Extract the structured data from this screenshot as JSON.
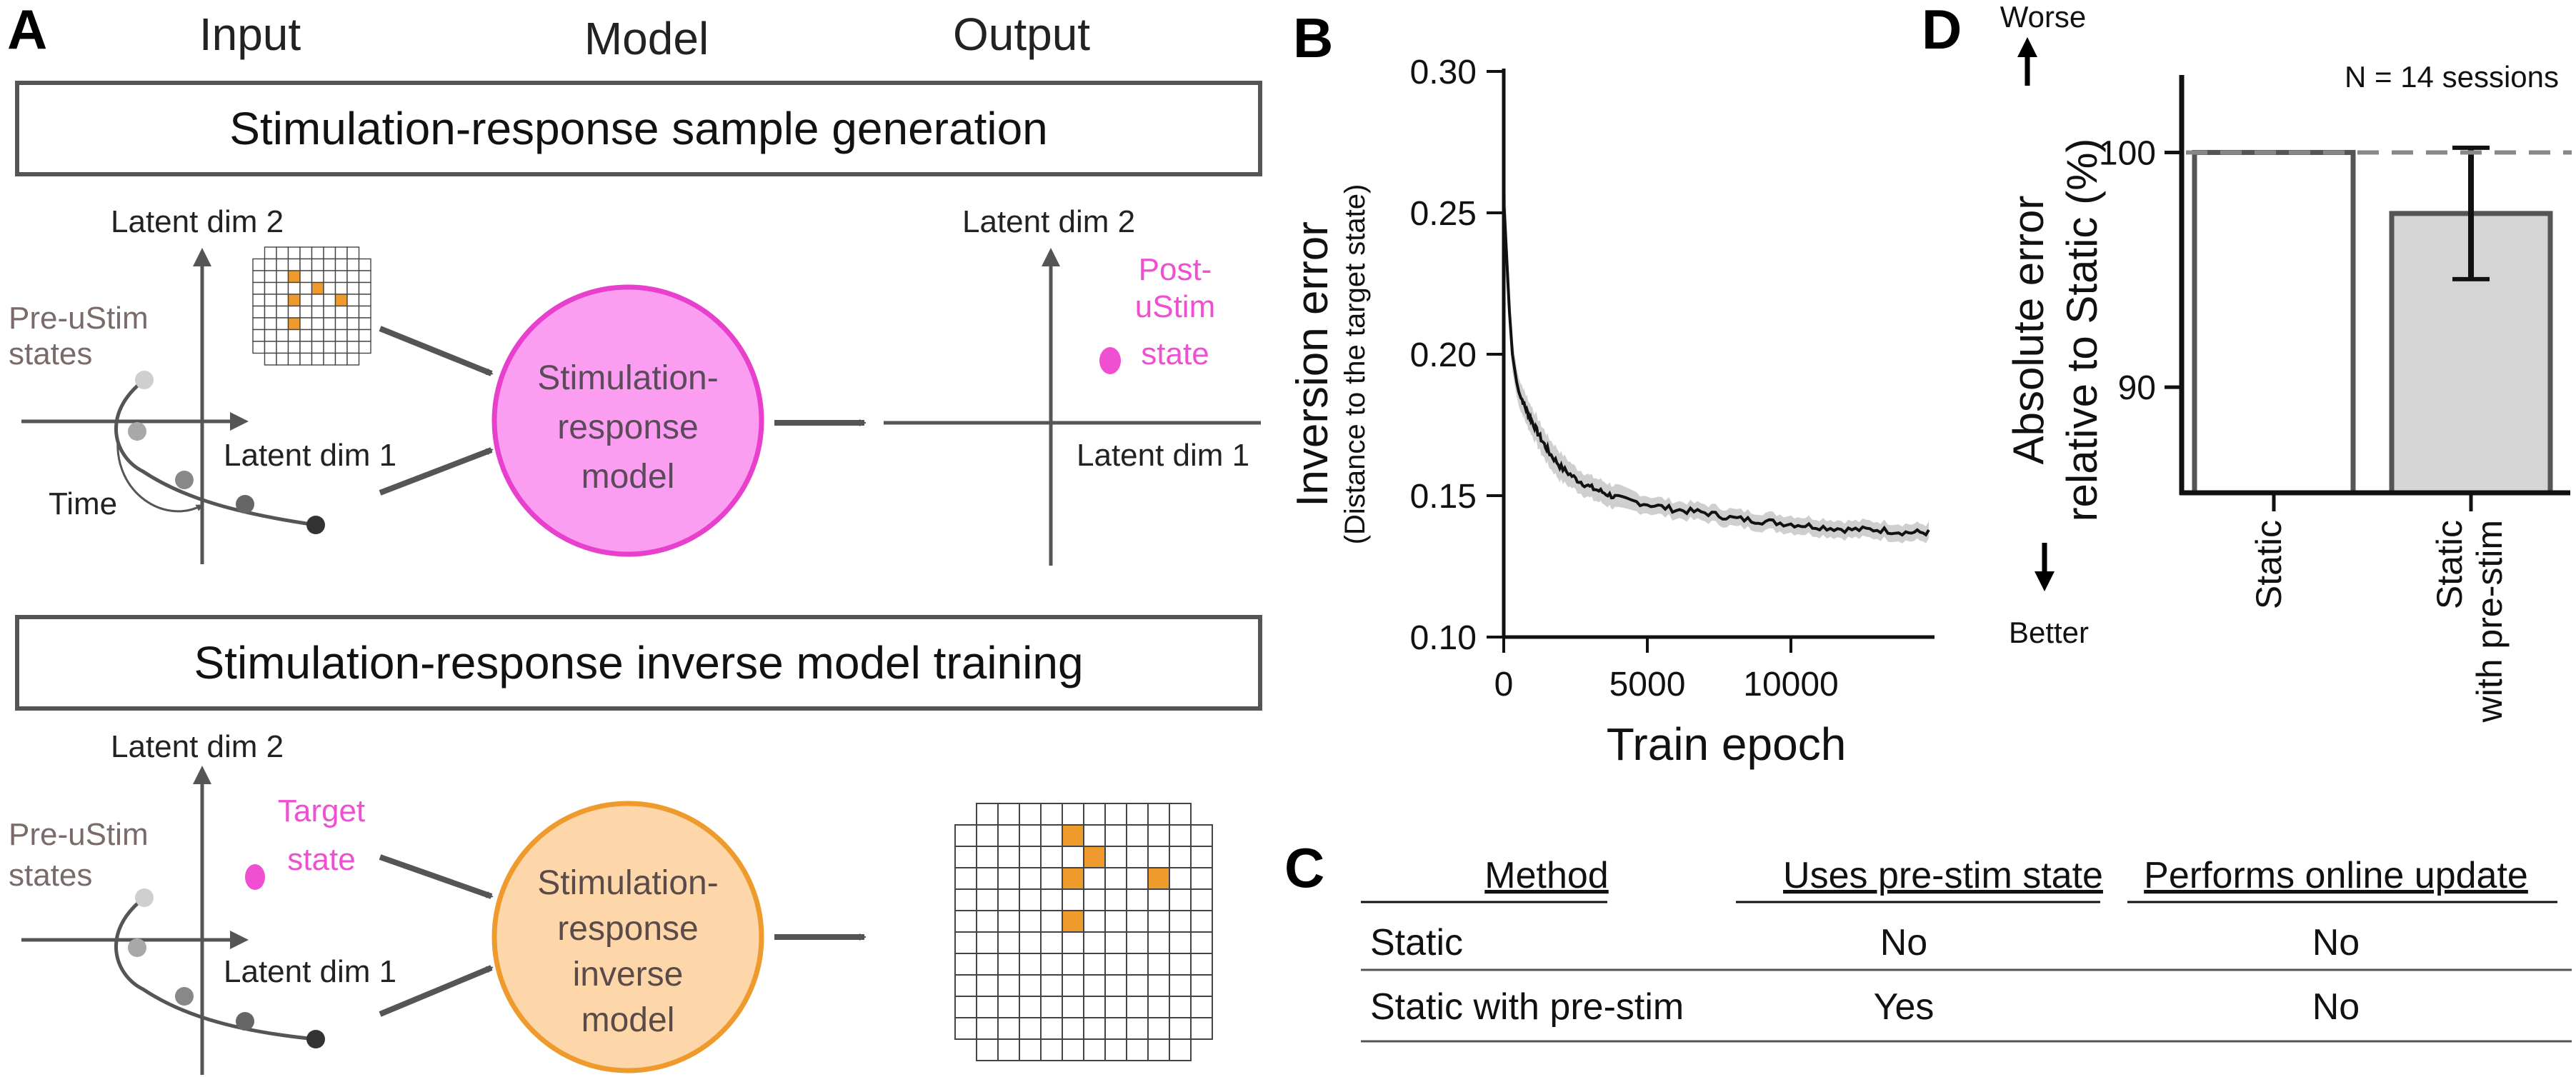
{
  "panels": {
    "A": {
      "letter": "A",
      "col_input": "Input",
      "col_model": "Model",
      "col_output": "Output",
      "section1_title": "Stimulation-response sample generation",
      "section2_title": "Stimulation-response inverse model training",
      "latent_dim_1": "Latent dim 1",
      "latent_dim_2": "Latent dim 2",
      "pre_ustim_line1": "Pre-uStim",
      "pre_ustim_line2": "states",
      "time_label": "Time",
      "post_ustim_line1": "Post-",
      "post_ustim_line2": "uStim",
      "post_ustim_line3": "state",
      "target_line1": "Target",
      "target_line2": "state",
      "model1_line1": "Stimulation-",
      "model1_line2": "response",
      "model1_line3": "model",
      "model2_line1": "Stimulation-",
      "model2_line2": "response",
      "model2_line3": "inverse",
      "model2_line4": "model"
    },
    "B": {
      "letter": "B"
    },
    "C": {
      "letter": "C",
      "headers": [
        "Method",
        "Uses pre-stim state",
        "Performs online update"
      ],
      "rows": [
        [
          "Static",
          "No",
          "No"
        ],
        [
          "Static with pre-stim",
          "Yes",
          "No"
        ]
      ]
    },
    "D": {
      "letter": "D"
    }
  },
  "colors": {
    "magenta": "#f04fd2",
    "model1_fill": "#fb9df0",
    "model1_stroke": "#e83fcc",
    "model2_fill": "#fdd6a9",
    "model2_stroke": "#ef9a2c",
    "grid_orange": "#ef9a2c",
    "arrow": "#555555",
    "bar_static": "#ffffff",
    "bar_prestim": "#d5d5d5"
  },
  "chart_data": [
    {
      "panel": "B",
      "type": "line",
      "xlabel": "Train epoch",
      "ylabel": "Inversion error",
      "ylabel_sub": "(Distance to the target state)",
      "xlim": [
        0,
        15000
      ],
      "ylim": [
        0.1,
        0.3
      ],
      "xticks": [
        0,
        5000,
        10000
      ],
      "xtick_labels": [
        "0",
        "5000",
        "10000"
      ],
      "yticks": [
        0.1,
        0.15,
        0.2,
        0.25,
        0.3
      ],
      "ytick_labels": [
        "0.10",
        "0.15",
        "0.20",
        "0.25",
        "0.30"
      ],
      "series": [
        {
          "name": "mean",
          "x": [
            0,
            100,
            200,
            300,
            450,
            600,
            800,
            1000,
            1300,
            1600,
            2000,
            2500,
            3000,
            3500,
            4000,
            5000,
            6000,
            7000,
            8000,
            9000,
            10000,
            11000,
            12000,
            13000,
            14000,
            14800
          ],
          "y": [
            0.255,
            0.235,
            0.215,
            0.2,
            0.19,
            0.185,
            0.18,
            0.176,
            0.17,
            0.165,
            0.16,
            0.156,
            0.153,
            0.151,
            0.149,
            0.147,
            0.145,
            0.144,
            0.142,
            0.141,
            0.14,
            0.139,
            0.138,
            0.138,
            0.137,
            0.137
          ],
          "band": [
            0.02,
            0.012,
            0.008,
            0.006,
            0.005,
            0.005,
            0.005,
            0.005,
            0.005,
            0.005,
            0.005,
            0.004,
            0.004,
            0.004,
            0.004,
            0.003,
            0.003,
            0.003,
            0.003,
            0.003,
            0.003,
            0.003,
            0.003,
            0.003,
            0.003,
            0.003
          ]
        }
      ]
    },
    {
      "panel": "D",
      "type": "bar",
      "categories": [
        "Static",
        "Static\nwith pre-stim"
      ],
      "values": [
        100,
        97.4
      ],
      "errors": [
        0,
        2.8
      ],
      "ylabel_line1": "Absolute error",
      "ylabel_line2": "relative to Static (%)",
      "ylim": [
        85.5,
        103.3
      ],
      "yticks": [
        90,
        100
      ],
      "ytick_labels": [
        "90",
        "100"
      ],
      "reference_line": 100,
      "annotation": "N = 14 sessions",
      "worse_label": "Worse",
      "better_label": "Better"
    }
  ]
}
